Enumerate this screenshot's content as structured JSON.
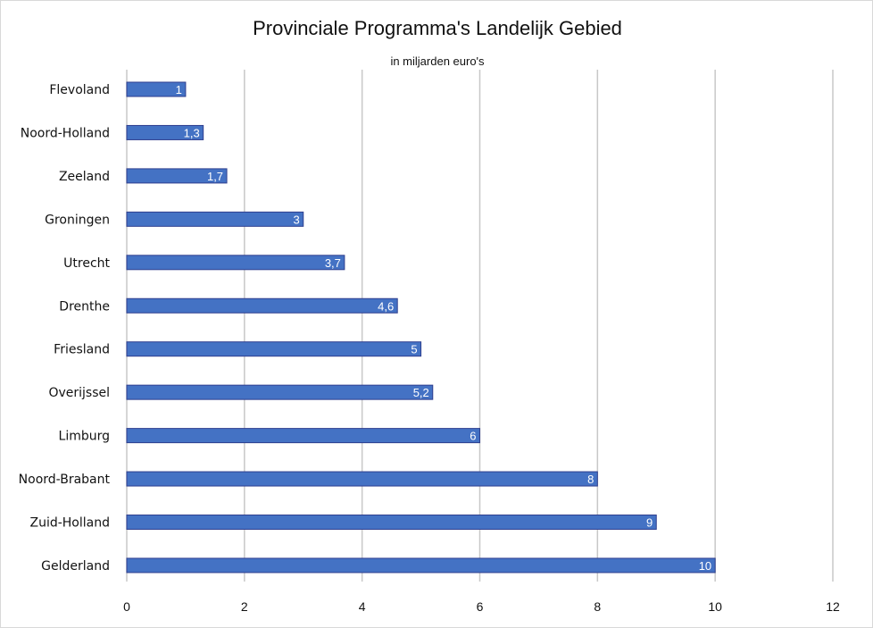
{
  "chart_data": {
    "type": "bar",
    "orientation": "horizontal",
    "title": "Provinciale Programma's Landelijk Gebied",
    "subtitle": "in miljarden euro's",
    "xlabel": "",
    "ylabel": "",
    "categories": [
      "Flevoland",
      "Noord-Holland",
      "Zeeland",
      "Groningen",
      "Utrecht",
      "Drenthe",
      "Friesland",
      "Overijssel",
      "Limburg",
      "Noord-Brabant",
      "Zuid-Holland",
      "Gelderland"
    ],
    "values": [
      1,
      1.3,
      1.7,
      3,
      3.7,
      4.6,
      5,
      5.2,
      6,
      8,
      9,
      10
    ],
    "data_labels": [
      "1",
      "1,3",
      "1,7",
      "3",
      "3,7",
      "4,6",
      "5",
      "5,2",
      "6",
      "8",
      "9",
      "10"
    ],
    "xlim": [
      0,
      12
    ],
    "x_ticks": [
      "0",
      "2",
      "4",
      "6",
      "8",
      "10",
      "12"
    ],
    "grid": "vertical",
    "legend": "none",
    "bar_color": "#4472c4",
    "bar_edge_color": "#2f3f8f",
    "grid_color": "#c8c8c8"
  }
}
